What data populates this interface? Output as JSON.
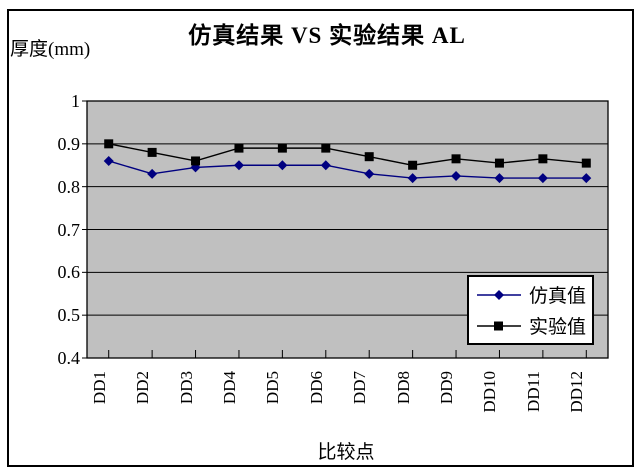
{
  "window": {
    "background": "#ffffff",
    "frame_border_color": "#000000"
  },
  "chart_data": {
    "type": "line",
    "title": "仿真结果 VS 实验结果 AL",
    "ylabel": "厚度(mm)",
    "xlabel": "比较点",
    "categories": [
      "DD1",
      "DD2",
      "DD3",
      "DD4",
      "DD5",
      "DD6",
      "DD7",
      "DD8",
      "DD9",
      "DD10",
      "DD11",
      "DD12"
    ],
    "series": [
      {
        "name": "仿真值",
        "marker": "diamond",
        "color": "#000080",
        "values": [
          0.86,
          0.83,
          0.845,
          0.85,
          0.85,
          0.85,
          0.83,
          0.82,
          0.825,
          0.82,
          0.82,
          0.82
        ]
      },
      {
        "name": "实验值",
        "marker": "square",
        "color": "#000000",
        "values": [
          0.9,
          0.88,
          0.86,
          0.89,
          0.89,
          0.89,
          0.87,
          0.85,
          0.865,
          0.855,
          0.865,
          0.855
        ]
      }
    ],
    "ylim": [
      0.4,
      1.0
    ],
    "ytick_step": 0.1,
    "ytick_labels": [
      "1",
      "0.9",
      "0.8",
      "0.7",
      "0.6",
      "0.5",
      "0.4"
    ],
    "plot_bg": "#C0C0C0",
    "grid": "horizontal-only",
    "gridline_color": "#000000",
    "legend_position": "inside-bottom-right",
    "legend_entries": [
      "仿真值",
      "实验值"
    ]
  }
}
